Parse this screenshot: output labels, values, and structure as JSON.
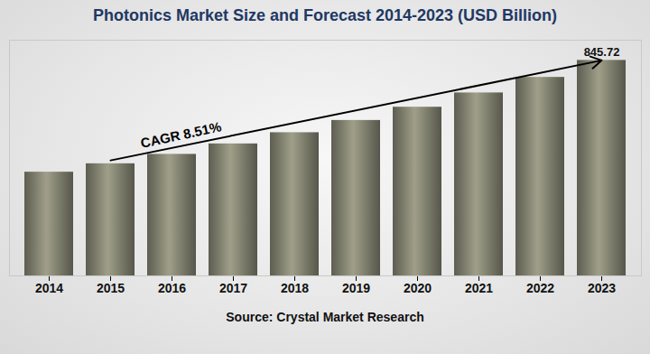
{
  "chart_data": {
    "type": "bar",
    "title": "Photonics Market Size and Forecast 2014-2023 (USD Billion)",
    "source": "Source: Crystal Market Research",
    "annotation": "CAGR 8.51%",
    "categories": [
      "2014",
      "2015",
      "2016",
      "2017",
      "2018",
      "2019",
      "2020",
      "2021",
      "2022",
      "2023"
    ],
    "values": [
      407,
      440,
      477,
      518,
      562,
      610,
      662,
      718,
      779,
      845.72
    ],
    "value_labels": [
      null,
      null,
      null,
      null,
      null,
      null,
      null,
      null,
      null,
      "845.72"
    ],
    "color": "#80806f",
    "ylim": [
      0,
      925
    ],
    "tick_labels": "x",
    "grid": false
  }
}
